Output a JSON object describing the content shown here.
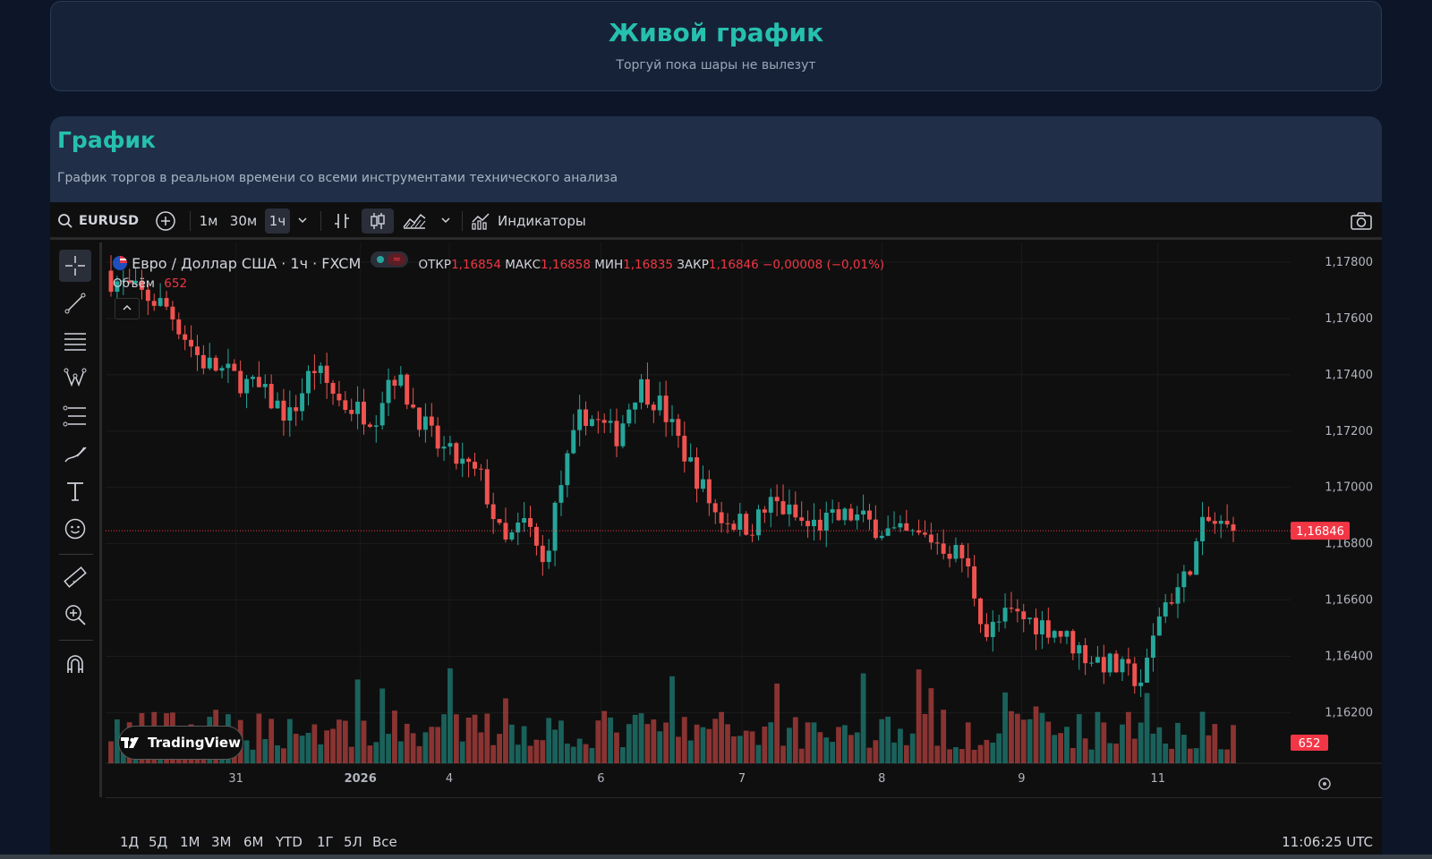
{
  "hero": {
    "title": "Живой график",
    "subtitle": "Торгуй пока шары не вылезут"
  },
  "card": {
    "title": "График",
    "subtitle": "График торгов в реальном времени со всеми инструментами технического анализа"
  },
  "toolbar": {
    "symbol": "EURUSD",
    "intervals": [
      "1м",
      "30м",
      "1ч"
    ],
    "active_interval": "1ч",
    "indicators_label": "Индикаторы"
  },
  "legend": {
    "instrument": "Евро / Доллар США · 1ч · FXCM",
    "open_label": "ОТКР",
    "open": "1,16854",
    "high_label": "МАКС",
    "high": "1,16858",
    "low_label": "МИН",
    "low": "1,16835",
    "close_label": "ЗАКР",
    "close": "1,16846",
    "change": "−0,00008 (−0,01%)",
    "volume_label": "Объём",
    "volume": "652"
  },
  "ranges": [
    "1Д",
    "5Д",
    "1М",
    "3М",
    "6М",
    "YTD",
    "1Г",
    "5Л",
    "Все"
  ],
  "time_utc": "11:06:25 UTC",
  "branding": "TradingView",
  "colors": {
    "up": "#26a69a",
    "down": "#ef5350",
    "accent": "#26c0ae",
    "last_price": "#f23645"
  },
  "chart_data": {
    "type": "candlestick",
    "symbol": "EURUSD",
    "interval": "1ч",
    "y_ticks": [
      "1,17800",
      "1,17600",
      "1,17400",
      "1,17200",
      "1,17000",
      "1,16800",
      "1,16600",
      "1,16400",
      "1,16200"
    ],
    "ylim": [
      1.1602,
      1.1787
    ],
    "x_labels": [
      "31",
      "2026",
      "4",
      "6",
      "7",
      "8",
      "9",
      "11"
    ],
    "last_price": 1.16846,
    "last_price_label": "1,16846",
    "last_volume": 652,
    "last_volume_label": "652",
    "close_path": [
      {
        "p": 0,
        "v": 1.1774
      },
      {
        "p": 0.05,
        "v": 1.1764
      },
      {
        "p": 0.08,
        "v": 1.1745
      },
      {
        "p": 0.13,
        "v": 1.1735
      },
      {
        "p": 0.16,
        "v": 1.1725
      },
      {
        "p": 0.18,
        "v": 1.1743
      },
      {
        "p": 0.205,
        "v": 1.173
      },
      {
        "p": 0.235,
        "v": 1.1725
      },
      {
        "p": 0.25,
        "v": 1.1742
      },
      {
        "p": 0.27,
        "v": 1.1728
      },
      {
        "p": 0.29,
        "v": 1.1715
      },
      {
        "p": 0.33,
        "v": 1.1703
      },
      {
        "p": 0.35,
        "v": 1.1679
      },
      {
        "p": 0.37,
        "v": 1.1688
      },
      {
        "p": 0.385,
        "v": 1.1672
      },
      {
        "p": 0.4,
        "v": 1.17
      },
      {
        "p": 0.42,
        "v": 1.1727
      },
      {
        "p": 0.45,
        "v": 1.1718
      },
      {
        "p": 0.47,
        "v": 1.1737
      },
      {
        "p": 0.49,
        "v": 1.1729
      },
      {
        "p": 0.51,
        "v": 1.1713
      },
      {
        "p": 0.54,
        "v": 1.169
      },
      {
        "p": 0.57,
        "v": 1.1686
      },
      {
        "p": 0.59,
        "v": 1.1695
      },
      {
        "p": 0.62,
        "v": 1.1686
      },
      {
        "p": 0.66,
        "v": 1.169
      },
      {
        "p": 0.7,
        "v": 1.1683
      },
      {
        "p": 0.73,
        "v": 1.1682
      },
      {
        "p": 0.76,
        "v": 1.1675
      },
      {
        "p": 0.78,
        "v": 1.1648
      },
      {
        "p": 0.8,
        "v": 1.1655
      },
      {
        "p": 0.84,
        "v": 1.165
      },
      {
        "p": 0.87,
        "v": 1.164
      },
      {
        "p": 0.89,
        "v": 1.1637
      },
      {
        "p": 0.92,
        "v": 1.1631
      },
      {
        "p": 0.935,
        "v": 1.1657
      },
      {
        "p": 0.955,
        "v": 1.1666
      },
      {
        "p": 0.975,
        "v": 1.1688
      },
      {
        "p": 1,
        "v": 1.16846
      }
    ],
    "candle_count": 183
  }
}
